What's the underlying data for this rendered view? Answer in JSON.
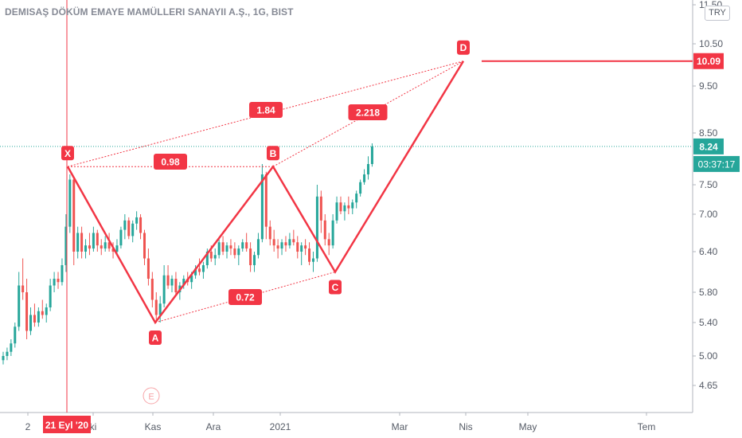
{
  "title": "DEMISAŞ DÖKÜM EMAYE MAMÜLLERI SANAYII A.Ş., 1G, BIST",
  "currency": "TRY",
  "colors": {
    "up": "#26a69a",
    "down": "#ef5350",
    "pattern": "#f23645",
    "price_line": "#26a69a"
  },
  "chart_data": {
    "type": "candlestick",
    "y_axis": {
      "ticks": [
        "4.65",
        "5.00",
        "5.40",
        "5.80",
        "6.40",
        "7.00",
        "7.50",
        "8.50",
        "9.50",
        "10.50",
        "11.50"
      ]
    },
    "x_axis": {
      "ticks": [
        "2",
        "ki",
        "Kas",
        "Ara",
        "2021",
        "Mar",
        "Nis",
        "May",
        "Tem"
      ],
      "crosshair_label": "21 Eyl '20"
    },
    "current_price": "8.24",
    "countdown": "03:37:17",
    "target_price": "10.09",
    "harmonic_pattern": {
      "points": [
        {
          "label": "X",
          "price": 7.85
        },
        {
          "label": "A",
          "price": 5.4
        },
        {
          "label": "B",
          "price": 7.85
        },
        {
          "label": "C",
          "price": 6.1
        },
        {
          "label": "D",
          "price": 10.09
        }
      ],
      "ratios": [
        "0.98",
        "0.72",
        "1.84",
        "2.218"
      ],
      "extra_label": "E"
    },
    "candles": [
      [
        4.95,
        5.05,
        4.9,
        5.0
      ],
      [
        5.0,
        5.1,
        4.95,
        5.05
      ],
      [
        5.05,
        5.2,
        5.0,
        5.15
      ],
      [
        5.15,
        5.4,
        5.1,
        5.35
      ],
      [
        5.35,
        6.1,
        5.3,
        5.9
      ],
      [
        5.9,
        6.3,
        5.7,
        5.8
      ],
      [
        5.8,
        6.0,
        5.2,
        5.3
      ],
      [
        5.3,
        5.6,
        5.25,
        5.5
      ],
      [
        5.5,
        5.65,
        5.35,
        5.4
      ],
      [
        5.4,
        5.6,
        5.35,
        5.55
      ],
      [
        5.55,
        5.7,
        5.45,
        5.5
      ],
      [
        5.5,
        5.65,
        5.4,
        5.6
      ],
      [
        5.6,
        6.0,
        5.55,
        5.9
      ],
      [
        5.9,
        6.1,
        5.8,
        6.0
      ],
      [
        6.0,
        6.1,
        5.85,
        5.95
      ],
      [
        5.95,
        6.3,
        5.9,
        6.2
      ],
      [
        6.2,
        7.0,
        6.1,
        6.8
      ],
      [
        6.8,
        7.7,
        6.7,
        7.6
      ],
      [
        7.6,
        7.65,
        6.2,
        6.4
      ],
      [
        6.4,
        6.8,
        6.3,
        6.7
      ],
      [
        6.7,
        6.8,
        6.3,
        6.4
      ],
      [
        6.4,
        6.6,
        6.3,
        6.5
      ],
      [
        6.5,
        6.7,
        6.35,
        6.45
      ],
      [
        6.45,
        6.8,
        6.4,
        6.7
      ],
      [
        6.7,
        6.75,
        6.4,
        6.5
      ],
      [
        6.5,
        6.6,
        6.35,
        6.45
      ],
      [
        6.45,
        6.65,
        6.4,
        6.55
      ],
      [
        6.55,
        6.7,
        6.4,
        6.45
      ],
      [
        6.45,
        6.55,
        6.3,
        6.4
      ],
      [
        6.4,
        6.6,
        6.35,
        6.5
      ],
      [
        6.5,
        6.8,
        6.45,
        6.75
      ],
      [
        6.75,
        7.0,
        6.6,
        6.9
      ],
      [
        6.9,
        6.95,
        6.6,
        6.65
      ],
      [
        6.65,
        6.9,
        6.55,
        6.85
      ],
      [
        6.85,
        7.05,
        6.75,
        6.95
      ],
      [
        6.95,
        7.0,
        6.6,
        6.7
      ],
      [
        6.7,
        6.75,
        6.2,
        6.3
      ],
      [
        6.3,
        6.45,
        5.9,
        6.0
      ],
      [
        6.0,
        6.1,
        5.6,
        5.7
      ],
      [
        5.7,
        5.8,
        5.4,
        5.5
      ],
      [
        5.5,
        5.75,
        5.4,
        5.65
      ],
      [
        5.65,
        6.2,
        5.6,
        6.05
      ],
      [
        6.05,
        6.2,
        5.85,
        5.9
      ],
      [
        5.9,
        6.05,
        5.8,
        6.0
      ],
      [
        6.0,
        6.1,
        5.75,
        5.8
      ],
      [
        5.8,
        5.95,
        5.7,
        5.9
      ],
      [
        5.9,
        6.05,
        5.85,
        6.0
      ],
      [
        6.0,
        6.1,
        5.9,
        5.95
      ],
      [
        5.95,
        6.1,
        5.85,
        6.05
      ],
      [
        6.05,
        6.2,
        6.0,
        6.15
      ],
      [
        6.15,
        6.3,
        6.05,
        6.1
      ],
      [
        6.1,
        6.25,
        6.0,
        6.2
      ],
      [
        6.2,
        6.45,
        6.15,
        6.4
      ],
      [
        6.4,
        6.5,
        6.25,
        6.3
      ],
      [
        6.3,
        6.45,
        6.2,
        6.35
      ],
      [
        6.35,
        6.6,
        6.3,
        6.55
      ],
      [
        6.55,
        6.65,
        6.35,
        6.4
      ],
      [
        6.4,
        6.55,
        6.3,
        6.5
      ],
      [
        6.5,
        6.6,
        6.35,
        6.45
      ],
      [
        6.45,
        6.55,
        6.3,
        6.35
      ],
      [
        6.35,
        6.5,
        6.2,
        6.45
      ],
      [
        6.45,
        6.6,
        6.4,
        6.55
      ],
      [
        6.55,
        6.7,
        6.4,
        6.45
      ],
      [
        6.45,
        6.55,
        6.1,
        6.2
      ],
      [
        6.2,
        6.4,
        6.1,
        6.35
      ],
      [
        6.35,
        6.7,
        6.3,
        6.6
      ],
      [
        6.6,
        7.9,
        6.55,
        7.7
      ],
      [
        7.7,
        7.75,
        6.6,
        6.8
      ],
      [
        6.8,
        6.9,
        6.5,
        6.6
      ],
      [
        6.6,
        6.75,
        6.4,
        6.5
      ],
      [
        6.5,
        6.6,
        6.3,
        6.45
      ],
      [
        6.45,
        6.6,
        6.35,
        6.55
      ],
      [
        6.55,
        6.65,
        6.4,
        6.5
      ],
      [
        6.5,
        6.7,
        6.45,
        6.6
      ],
      [
        6.6,
        6.75,
        6.5,
        6.55
      ],
      [
        6.55,
        6.65,
        6.3,
        6.4
      ],
      [
        6.4,
        6.55,
        6.2,
        6.5
      ],
      [
        6.5,
        6.6,
        6.35,
        6.45
      ],
      [
        6.45,
        6.55,
        6.2,
        6.25
      ],
      [
        6.25,
        6.4,
        6.1,
        6.3
      ],
      [
        6.3,
        7.5,
        6.25,
        7.3
      ],
      [
        7.3,
        7.4,
        6.7,
        6.9
      ],
      [
        6.9,
        7.0,
        6.5,
        6.6
      ],
      [
        6.6,
        6.7,
        6.35,
        6.5
      ],
      [
        6.5,
        7.0,
        6.45,
        6.9
      ],
      [
        6.9,
        7.3,
        6.85,
        7.2
      ],
      [
        7.2,
        7.3,
        7.0,
        7.05
      ],
      [
        7.05,
        7.2,
        6.9,
        7.15
      ],
      [
        7.15,
        7.3,
        7.0,
        7.1
      ],
      [
        7.1,
        7.25,
        7.0,
        7.2
      ],
      [
        7.2,
        7.4,
        7.1,
        7.35
      ],
      [
        7.35,
        7.6,
        7.3,
        7.55
      ],
      [
        7.55,
        7.8,
        7.5,
        7.7
      ],
      [
        7.7,
        8.05,
        7.6,
        7.9
      ],
      [
        7.9,
        8.3,
        7.85,
        8.24
      ]
    ]
  }
}
